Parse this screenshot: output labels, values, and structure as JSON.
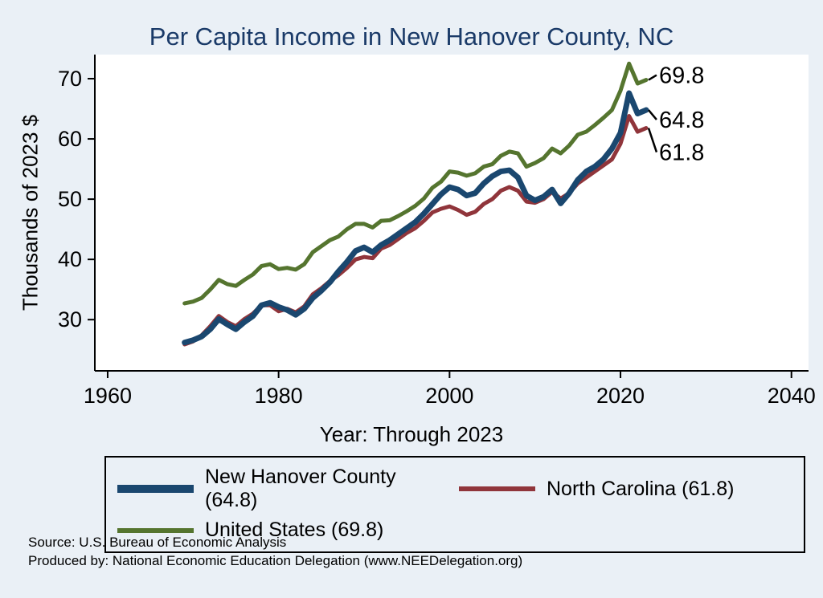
{
  "title": "Per Capita Income in New Hanover County, NC",
  "y_axis_title": "Thousands of 2023 $",
  "x_axis_title": "Year: Through 2023",
  "source": {
    "line1": "Source: U.S. Bureau of Economic Analysis",
    "line2": "Produced by: National Economic Education Delegation (www.NEEDelegation.org)"
  },
  "colors": {
    "background": "#eaf0f6",
    "title": "#1a3a68",
    "new_hanover": "#1a476f",
    "north_carolina": "#90353b",
    "united_states": "#55752f",
    "axis": "#000000"
  },
  "legend": {
    "items": [
      {
        "label": "New Hanover County (64.8)",
        "color": "#1a476f"
      },
      {
        "label": "North Carolina (61.8)",
        "color": "#90353b"
      },
      {
        "label": "United States (69.8)",
        "color": "#55752f"
      }
    ]
  },
  "end_labels": [
    {
      "text": "69.8",
      "series": "United States",
      "dy": -6
    },
    {
      "text": "64.8",
      "series": "New Hanover County",
      "dy": 12
    },
    {
      "text": "61.8",
      "series": "North Carolina",
      "dy": 30
    }
  ],
  "chart_data": {
    "type": "line",
    "title": "Per Capita Income in New Hanover County, NC",
    "xlabel": "Year: Through 2023",
    "ylabel": "Thousands of 2023 $",
    "xlim": [
      1958.5,
      2042
    ],
    "ylim": [
      21.5,
      74
    ],
    "xticks": [
      1960,
      1980,
      2000,
      2020,
      2040
    ],
    "yticks": [
      30,
      40,
      50,
      60,
      70
    ],
    "grid": false,
    "legend_position": "bottom",
    "x": [
      1969,
      1970,
      1971,
      1972,
      1973,
      1974,
      1975,
      1976,
      1977,
      1978,
      1979,
      1980,
      1981,
      1982,
      1983,
      1984,
      1985,
      1986,
      1987,
      1988,
      1989,
      1990,
      1991,
      1992,
      1993,
      1994,
      1995,
      1996,
      1997,
      1998,
      1999,
      2000,
      2001,
      2002,
      2003,
      2004,
      2005,
      2006,
      2007,
      2008,
      2009,
      2010,
      2011,
      2012,
      2013,
      2014,
      2015,
      2016,
      2017,
      2018,
      2019,
      2020,
      2021,
      2022,
      2023
    ],
    "series": [
      {
        "name": "New Hanover County",
        "color": "#1a476f",
        "width": 7,
        "final_value": 64.8,
        "values": [
          26.2,
          26.6,
          27.2,
          28.4,
          30.1,
          29.2,
          28.4,
          29.6,
          30.6,
          32.4,
          32.8,
          32.1,
          31.6,
          30.8,
          31.8,
          33.6,
          34.8,
          36.2,
          38.0,
          39.6,
          41.4,
          42.0,
          41.2,
          42.4,
          43.2,
          44.2,
          45.2,
          46.2,
          47.6,
          49.2,
          50.8,
          52.0,
          51.6,
          50.6,
          51.0,
          52.6,
          53.8,
          54.6,
          54.8,
          53.6,
          50.6,
          49.8,
          50.4,
          51.6,
          49.3,
          51.0,
          53.2,
          54.6,
          55.4,
          56.6,
          58.4,
          61.0,
          67.6,
          64.2,
          64.8
        ]
      },
      {
        "name": "North Carolina",
        "color": "#90353b",
        "width": 5,
        "final_value": 61.8,
        "values": [
          25.9,
          26.4,
          27.4,
          28.9,
          30.6,
          29.6,
          28.9,
          30.1,
          31.0,
          32.4,
          32.4,
          31.4,
          31.8,
          31.2,
          32.2,
          34.2,
          35.2,
          36.4,
          37.4,
          38.6,
          40.0,
          40.4,
          40.2,
          41.8,
          42.4,
          43.4,
          44.4,
          45.2,
          46.4,
          47.8,
          48.4,
          48.8,
          48.2,
          47.4,
          47.9,
          49.2,
          50.0,
          51.4,
          52.0,
          51.4,
          49.6,
          49.4,
          50.0,
          51.2,
          50.1,
          51.0,
          52.6,
          53.6,
          54.6,
          55.6,
          56.6,
          59.2,
          63.8,
          61.2,
          61.8
        ]
      },
      {
        "name": "United States",
        "color": "#55752f",
        "width": 5,
        "final_value": 69.8,
        "values": [
          32.7,
          33.0,
          33.6,
          35.0,
          36.6,
          35.9,
          35.6,
          36.6,
          37.5,
          38.9,
          39.2,
          38.4,
          38.6,
          38.3,
          39.2,
          41.2,
          42.2,
          43.2,
          43.8,
          45.0,
          45.9,
          45.9,
          45.3,
          46.4,
          46.5,
          47.2,
          48.0,
          48.9,
          50.1,
          51.9,
          52.9,
          54.6,
          54.4,
          53.9,
          54.3,
          55.4,
          55.8,
          57.2,
          57.9,
          57.6,
          55.4,
          56.0,
          56.8,
          58.4,
          57.6,
          58.9,
          60.7,
          61.2,
          62.3,
          63.5,
          64.8,
          68.0,
          72.5,
          69.2,
          69.8
        ]
      }
    ]
  }
}
